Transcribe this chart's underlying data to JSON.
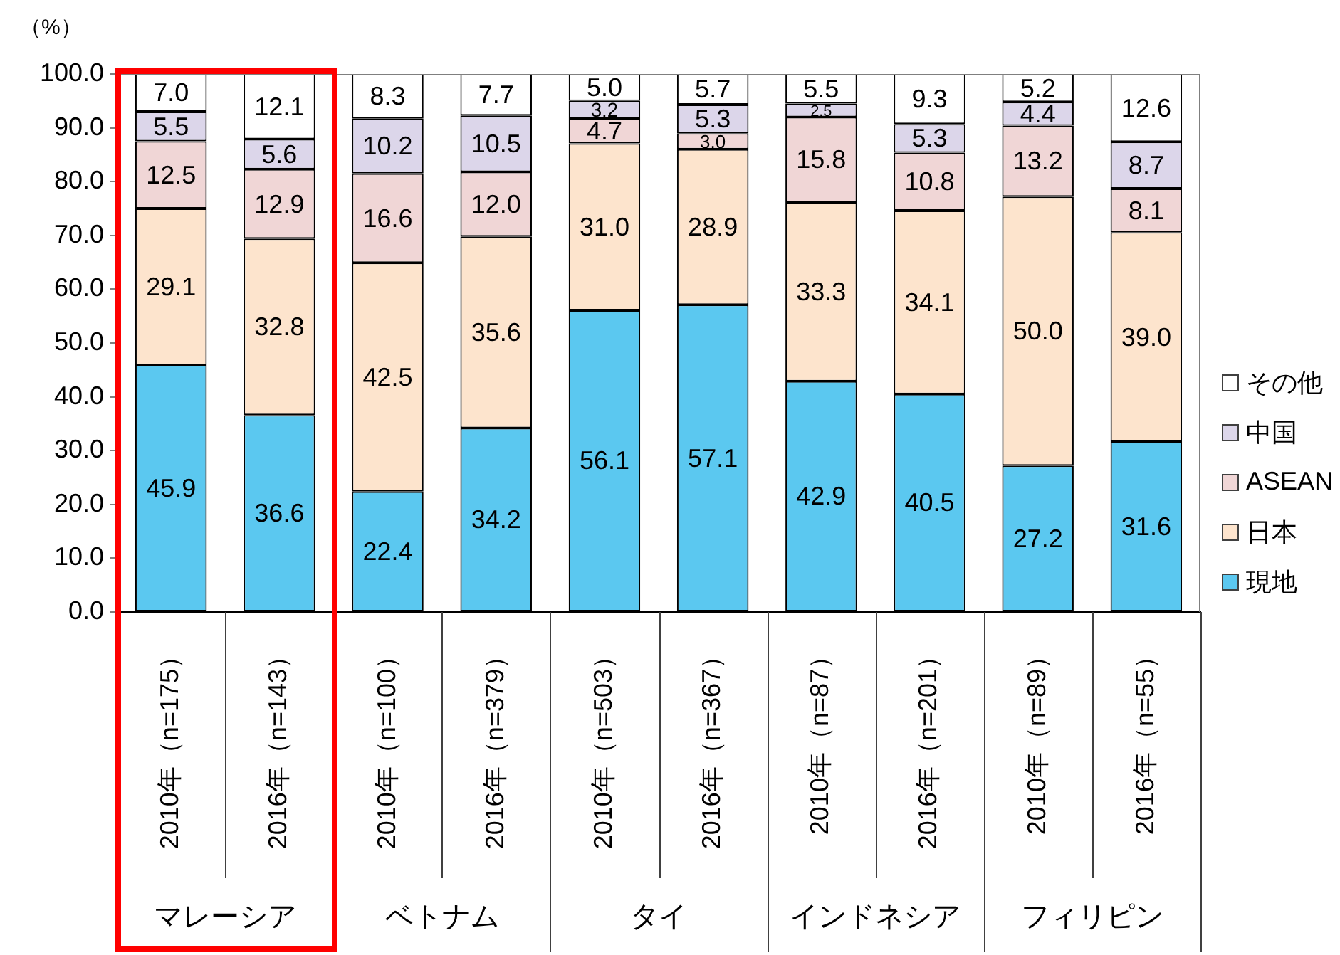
{
  "chart_data": {
    "type": "bar",
    "ylabel": "（%）",
    "stacked": true,
    "categories": [
      "2010年（n=175）",
      "2016年（n=143）",
      "2010年（n=100）",
      "2016年（n=379）",
      "2010年（n=503）",
      "2016年（n=367）",
      "2010年（n=87）",
      "2016年（n=201）",
      "2010年（n=89）",
      "2016年（n=55）"
    ],
    "series": [
      {
        "name": "現地",
        "color": "#5bc8f0",
        "values": [
          45.9,
          36.6,
          22.4,
          34.2,
          56.1,
          57.1,
          42.9,
          40.5,
          27.2,
          31.6
        ],
        "value_labels": [
          "45.9",
          "36.6",
          "22.4",
          "34.2",
          "56.1",
          "57.1",
          "42.9",
          "40.5",
          "27.2",
          "31.6"
        ]
      },
      {
        "name": "日本",
        "color": "#fde4cd",
        "values": [
          29.1,
          32.8,
          42.5,
          35.6,
          31.0,
          28.9,
          33.3,
          34.1,
          50.0,
          39.0
        ],
        "value_labels": [
          "29.1",
          "32.8",
          "42.5",
          "35.6",
          "31.0",
          "28.9",
          "33.3",
          "34.1",
          "50.0",
          "39.0"
        ]
      },
      {
        "name": "ASEAN",
        "color": "#f0d6d6",
        "values": [
          12.5,
          12.9,
          16.6,
          12.0,
          4.7,
          3.0,
          15.8,
          10.8,
          13.2,
          8.1
        ],
        "value_labels": [
          "12.5",
          "12.9",
          "16.6",
          "12.0",
          "4.7",
          "3.0",
          "15.8",
          "10.8",
          "13.2",
          "8.1"
        ]
      },
      {
        "name": "中国",
        "color": "#dcd6ea",
        "values": [
          5.5,
          5.6,
          10.2,
          10.5,
          3.2,
          5.3,
          2.5,
          5.3,
          4.4,
          8.7
        ],
        "value_labels": [
          "5.5",
          "5.6",
          "10.2",
          "10.5",
          "3.2",
          "5.3",
          "2.5",
          "5.3",
          "4.4",
          "8.7"
        ]
      },
      {
        "name": "その他",
        "color": "#ffffff",
        "values": [
          7.0,
          12.1,
          8.3,
          7.7,
          5.0,
          5.7,
          5.5,
          9.3,
          5.2,
          12.6
        ],
        "value_labels": [
          "7.0",
          "12.1",
          "8.3",
          "7.7",
          "5.0",
          "5.7",
          "5.5",
          "9.3",
          "5.2",
          "12.6"
        ]
      }
    ],
    "ylim": [
      0,
      100
    ],
    "yticks": [
      {
        "value": 0,
        "label": "0.0"
      },
      {
        "value": 10,
        "label": "10.0"
      },
      {
        "value": 20,
        "label": "20.0"
      },
      {
        "value": 30,
        "label": "30.0"
      },
      {
        "value": 40,
        "label": "40.0"
      },
      {
        "value": 50,
        "label": "50.0"
      },
      {
        "value": 60,
        "label": "60.0"
      },
      {
        "value": 70,
        "label": "70.0"
      },
      {
        "value": 80,
        "label": "80.0"
      },
      {
        "value": 90,
        "label": "90.0"
      },
      {
        "value": 100,
        "label": "100.0"
      }
    ],
    "legend": "right",
    "annotations": [
      "マレーシア",
      "ベトナム",
      "タイ",
      "インドネシア",
      "フィリピン"
    ]
  }
}
